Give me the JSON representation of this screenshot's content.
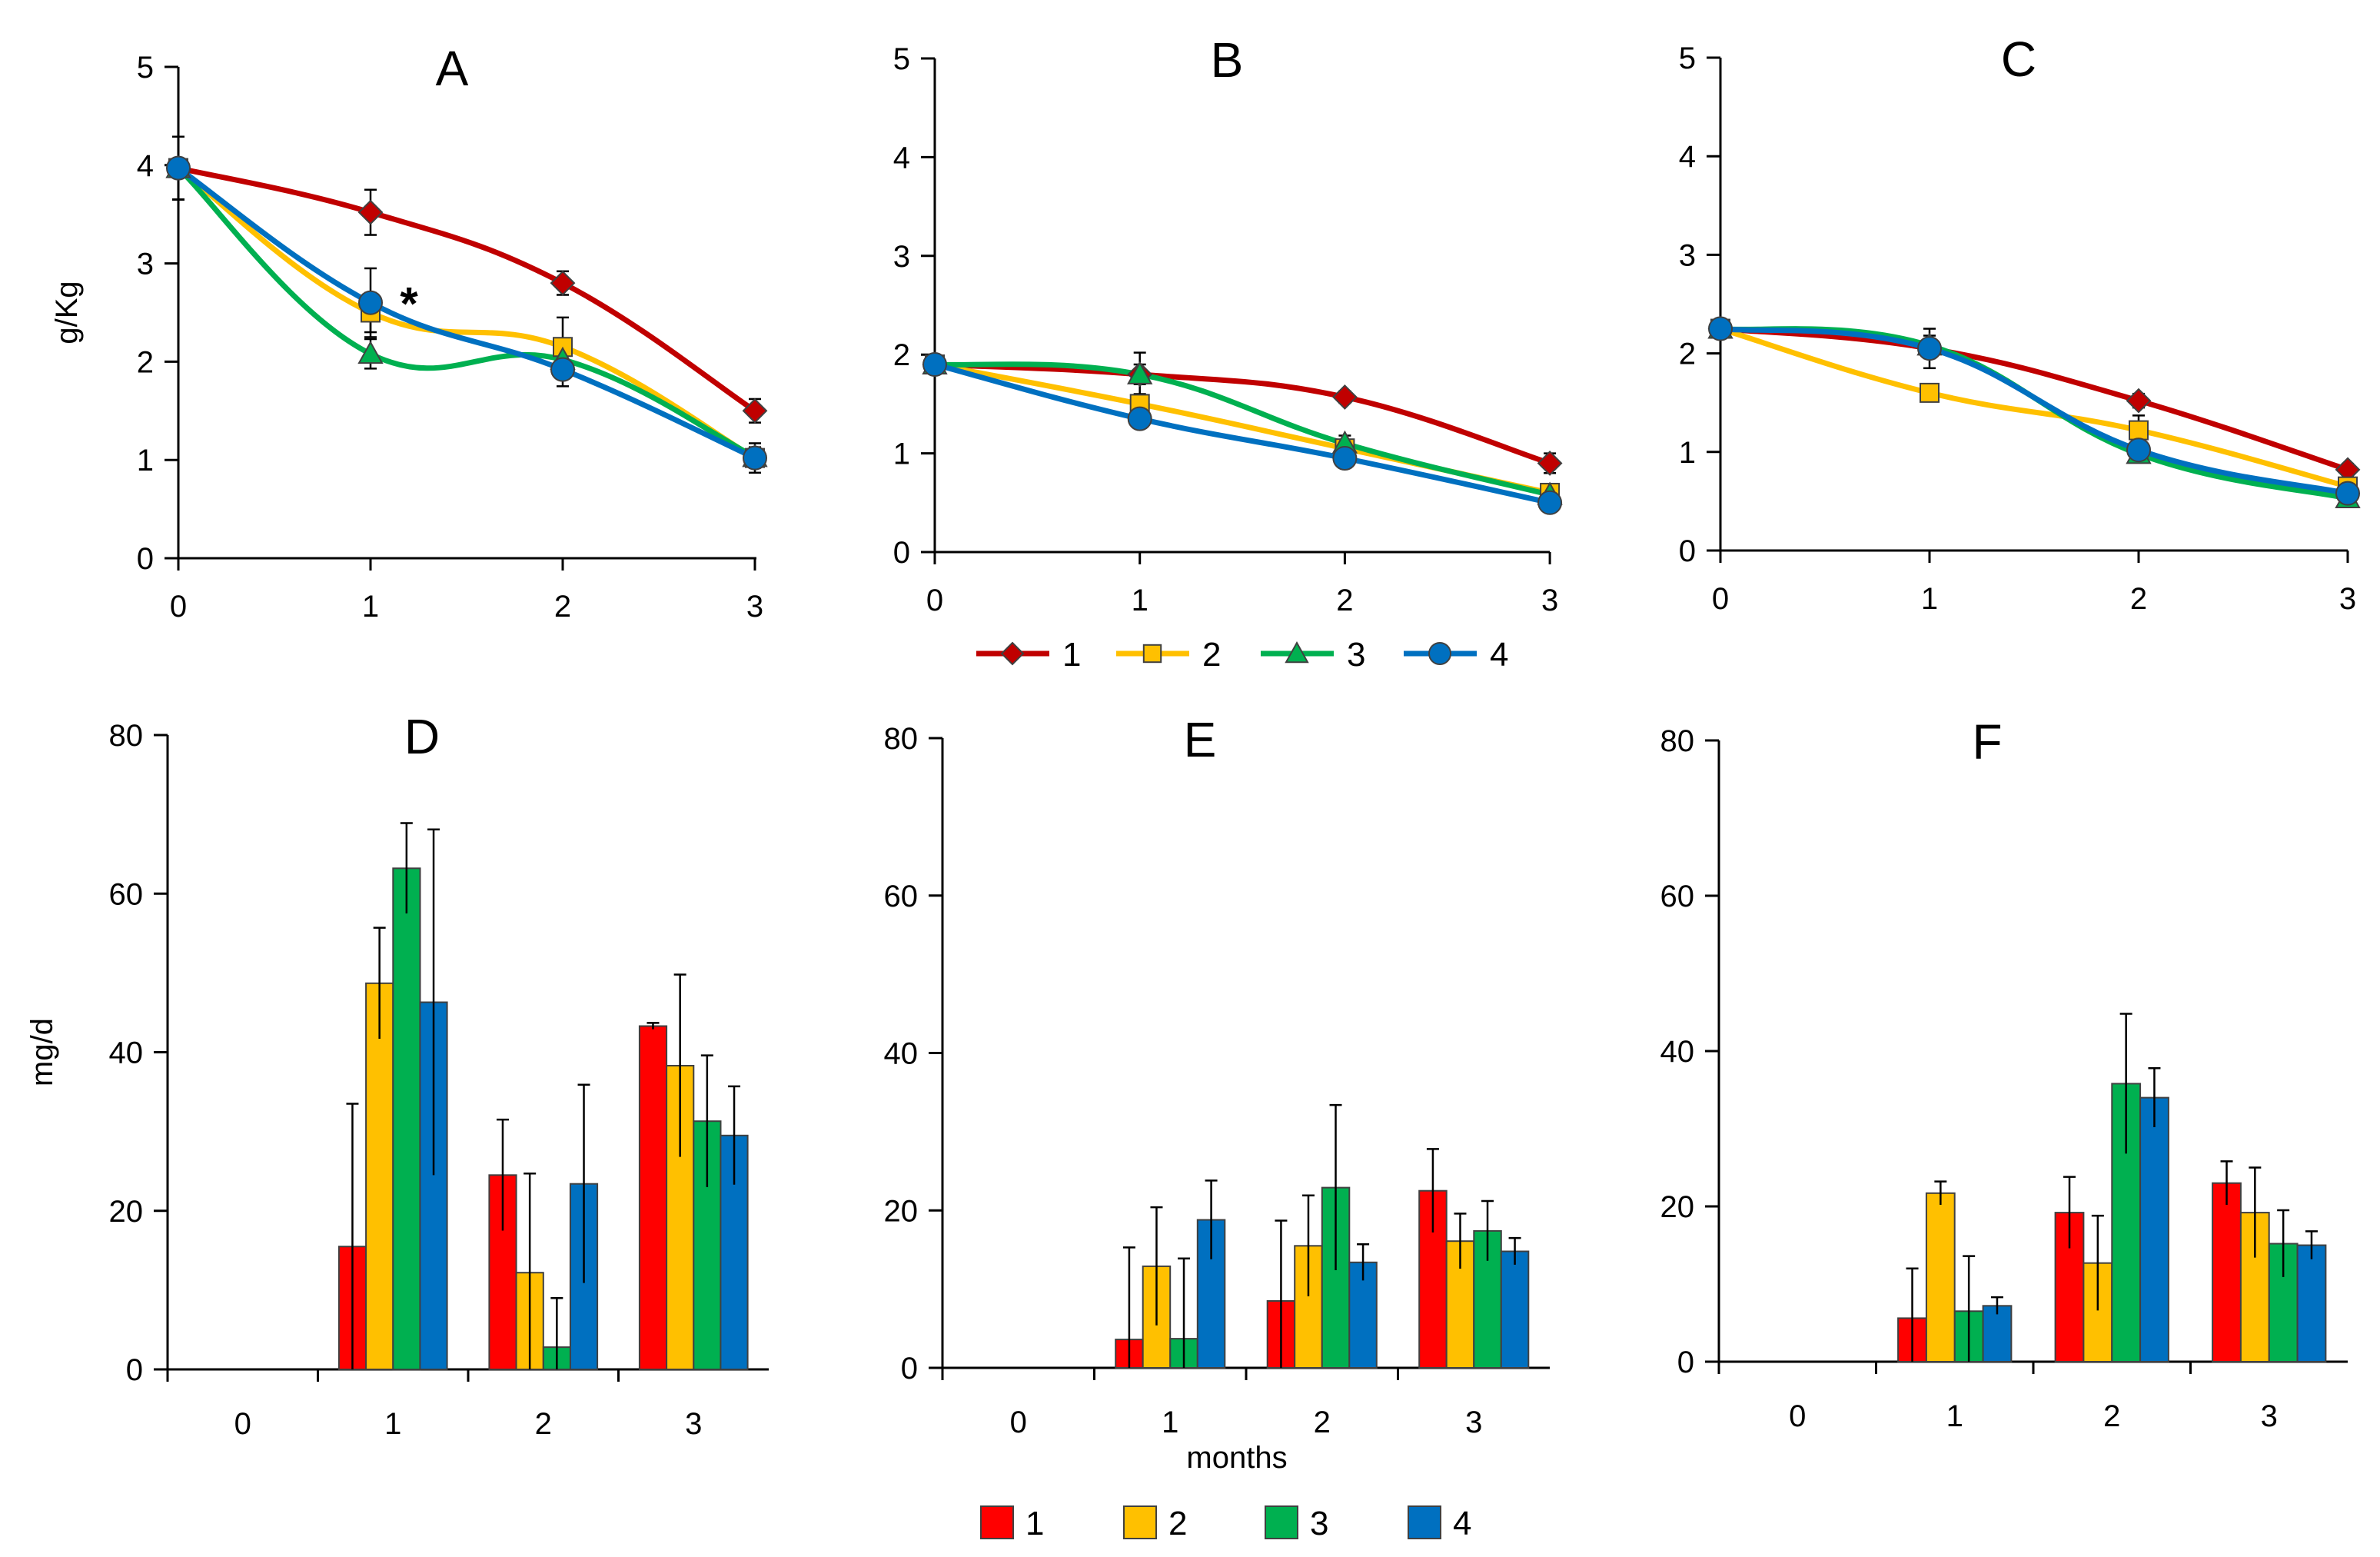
{
  "chart_data": [
    {
      "id": "A",
      "type": "line",
      "title": "A",
      "ylabel": "g/Kg",
      "xlabel": "",
      "x": [
        0,
        1,
        2,
        3
      ],
      "ylim": [
        0,
        5
      ],
      "yticks": [
        0,
        1,
        2,
        3,
        4,
        5
      ],
      "annotation": {
        "text": "*",
        "x": 1,
        "series": "4"
      },
      "series": [
        {
          "name": "1",
          "values": [
            3.97,
            3.52,
            2.8,
            1.5
          ],
          "errors": [
            0.32,
            0.23,
            0.12,
            0.12
          ]
        },
        {
          "name": "2",
          "values": [
            3.97,
            2.5,
            2.15,
            1.02
          ],
          "errors": [
            0.32,
            0.2,
            0.3,
            0.1
          ]
        },
        {
          "name": "3",
          "values": [
            3.97,
            2.08,
            2.02,
            1.03
          ],
          "errors": [
            0.32,
            0.15,
            0.15,
            0.1
          ]
        },
        {
          "name": "4",
          "values": [
            3.97,
            2.6,
            1.92,
            1.02
          ],
          "errors": [
            0.32,
            0.35,
            0.17,
            0.15
          ]
        }
      ]
    },
    {
      "id": "B",
      "type": "line",
      "title": "B",
      "ylabel": "",
      "xlabel": "",
      "x": [
        0,
        1,
        2,
        3
      ],
      "ylim": [
        0,
        5
      ],
      "yticks": [
        0,
        1,
        2,
        3,
        4,
        5
      ],
      "series": [
        {
          "name": "1",
          "values": [
            1.9,
            1.8,
            1.57,
            0.9
          ],
          "errors": [
            0.08,
            0.1,
            0.06,
            0.1
          ]
        },
        {
          "name": "2",
          "values": [
            1.9,
            1.5,
            1.05,
            0.6
          ],
          "errors": [
            0.08,
            0.1,
            0.07,
            0.06
          ]
        },
        {
          "name": "3",
          "values": [
            1.9,
            1.8,
            1.1,
            0.58
          ],
          "errors": [
            0.08,
            0.22,
            0.08,
            0.06
          ]
        },
        {
          "name": "4",
          "values": [
            1.9,
            1.35,
            0.95,
            0.5
          ],
          "errors": [
            0.08,
            0.06,
            0.05,
            0.05
          ]
        }
      ]
    },
    {
      "id": "C",
      "type": "line",
      "title": "C",
      "ylabel": "",
      "xlabel": "",
      "x": [
        0,
        1,
        2,
        3
      ],
      "ylim": [
        0,
        5
      ],
      "yticks": [
        0,
        1,
        2,
        3,
        4,
        5
      ],
      "series": [
        {
          "name": "1",
          "values": [
            2.25,
            2.05,
            1.52,
            0.82
          ],
          "errors": [
            0.05,
            0.1,
            0.07,
            0.06
          ]
        },
        {
          "name": "2",
          "values": [
            2.25,
            1.6,
            1.22,
            0.65
          ],
          "errors": [
            0.05,
            0.06,
            0.15,
            0.06
          ]
        },
        {
          "name": "3",
          "values": [
            2.25,
            2.08,
            0.98,
            0.53
          ],
          "errors": [
            0.05,
            0.1,
            0.07,
            0.05
          ]
        },
        {
          "name": "4",
          "values": [
            2.25,
            2.05,
            1.02,
            0.58
          ],
          "errors": [
            0.05,
            0.2,
            0.08,
            0.05
          ]
        }
      ]
    },
    {
      "id": "D",
      "type": "bar",
      "title": "D",
      "ylabel": "mg/d",
      "xlabel": "",
      "categories": [
        "0",
        "1",
        "2",
        "3"
      ],
      "ylim": [
        0,
        80
      ],
      "yticks": [
        0,
        20,
        40,
        60,
        80
      ],
      "series": [
        {
          "name": "1",
          "values": [
            0,
            15.5,
            24.5,
            43.3
          ],
          "errors": [
            0,
            18,
            7,
            0.4
          ]
        },
        {
          "name": "2",
          "values": [
            0,
            48.7,
            12.2,
            38.3
          ],
          "errors": [
            0,
            7,
            12.5,
            11.5
          ]
        },
        {
          "name": "3",
          "values": [
            0,
            63.2,
            2.8,
            31.3
          ],
          "errors": [
            0,
            5.7,
            6.2,
            8.3
          ]
        },
        {
          "name": "4",
          "values": [
            0,
            46.3,
            23.4,
            29.5
          ],
          "errors": [
            0,
            21.8,
            12.5,
            6.2
          ]
        }
      ]
    },
    {
      "id": "E",
      "type": "bar",
      "title": "E",
      "ylabel": "",
      "xlabel": "months",
      "categories": [
        "0",
        "1",
        "2",
        "3"
      ],
      "ylim": [
        0,
        80
      ],
      "yticks": [
        0,
        20,
        40,
        60,
        80
      ],
      "series": [
        {
          "name": "1",
          "values": [
            0,
            3.6,
            8.5,
            22.5
          ],
          "errors": [
            0,
            11.7,
            10.2,
            5.3
          ]
        },
        {
          "name": "2",
          "values": [
            0,
            12.9,
            15.5,
            16.1
          ],
          "errors": [
            0,
            7.5,
            6.4,
            3.5
          ]
        },
        {
          "name": "3",
          "values": [
            0,
            3.7,
            22.9,
            17.4
          ],
          "errors": [
            0,
            10.2,
            10.5,
            3.8
          ]
        },
        {
          "name": "4",
          "values": [
            0,
            18.8,
            13.4,
            14.8
          ],
          "errors": [
            0,
            5,
            2.3,
            1.7
          ]
        }
      ]
    },
    {
      "id": "F",
      "type": "bar",
      "title": "F",
      "ylabel": "",
      "xlabel": "",
      "categories": [
        "0",
        "1",
        "2",
        "3"
      ],
      "ylim": [
        0,
        80
      ],
      "yticks": [
        0,
        20,
        40,
        60,
        80
      ],
      "series": [
        {
          "name": "1",
          "values": [
            0,
            5.6,
            19.2,
            23
          ],
          "errors": [
            0,
            6.4,
            4.6,
            2.8
          ]
        },
        {
          "name": "2",
          "values": [
            0,
            21.7,
            12.7,
            19.2
          ],
          "errors": [
            0,
            1.5,
            6.1,
            5.8
          ]
        },
        {
          "name": "3",
          "values": [
            0,
            6.5,
            35.8,
            15.2
          ],
          "errors": [
            0,
            7.1,
            9,
            4.3
          ]
        },
        {
          "name": "4",
          "values": [
            0,
            7.2,
            34,
            15
          ],
          "errors": [
            0,
            1.1,
            3.8,
            1.8
          ]
        }
      ]
    }
  ],
  "colors": {
    "line_series": [
      "#c00000",
      "#ffc000",
      "#00b050",
      "#0070c0"
    ],
    "marker_fill": [
      "#c00000",
      "#ffc000",
      "#00b050",
      "#0070c0"
    ],
    "bar_fill": [
      "#ff0000",
      "#ffc000",
      "#00b050",
      "#0070c0"
    ]
  },
  "markers": [
    "diamond",
    "square",
    "triangle",
    "circle"
  ],
  "line_legend": [
    {
      "label": "1",
      "marker": "diamond"
    },
    {
      "label": "2",
      "marker": "square"
    },
    {
      "label": "3",
      "marker": "triangle"
    },
    {
      "label": "4",
      "marker": "circle"
    }
  ],
  "bar_legend": [
    {
      "label": "1"
    },
    {
      "label": "2"
    },
    {
      "label": "3"
    },
    {
      "label": "4"
    }
  ]
}
